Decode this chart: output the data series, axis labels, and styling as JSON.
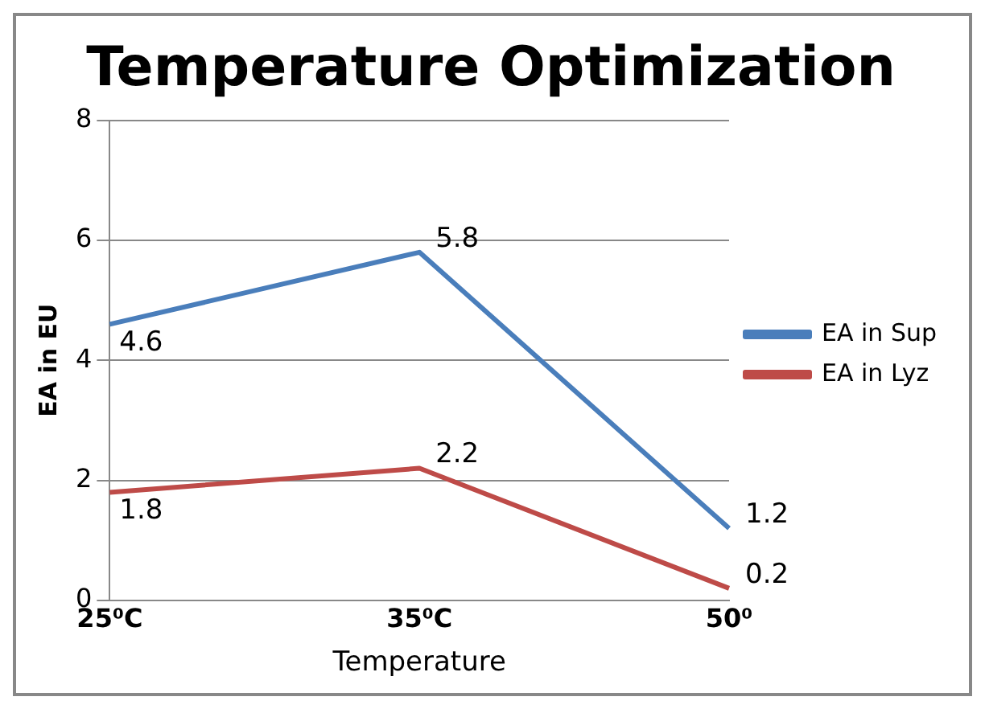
{
  "chart_data": {
    "type": "line",
    "title": "Temperature Optimization",
    "xlabel": "Temperature",
    "ylabel": "EA in EU",
    "categories": [
      "25⁰C",
      "35⁰C",
      "50⁰"
    ],
    "series": [
      {
        "name": "EA in Sup",
        "color": "#4a7ebb",
        "values": [
          4.6,
          5.8,
          1.2
        ]
      },
      {
        "name": "EA in Lyz",
        "color": "#be4b48",
        "values": [
          1.8,
          2.2,
          0.2
        ]
      }
    ],
    "ylim": [
      0,
      8
    ],
    "yticks": [
      0,
      2,
      4,
      6,
      8
    ],
    "grid": "y",
    "legend": "right",
    "marker": "none",
    "data_labels": true
  }
}
